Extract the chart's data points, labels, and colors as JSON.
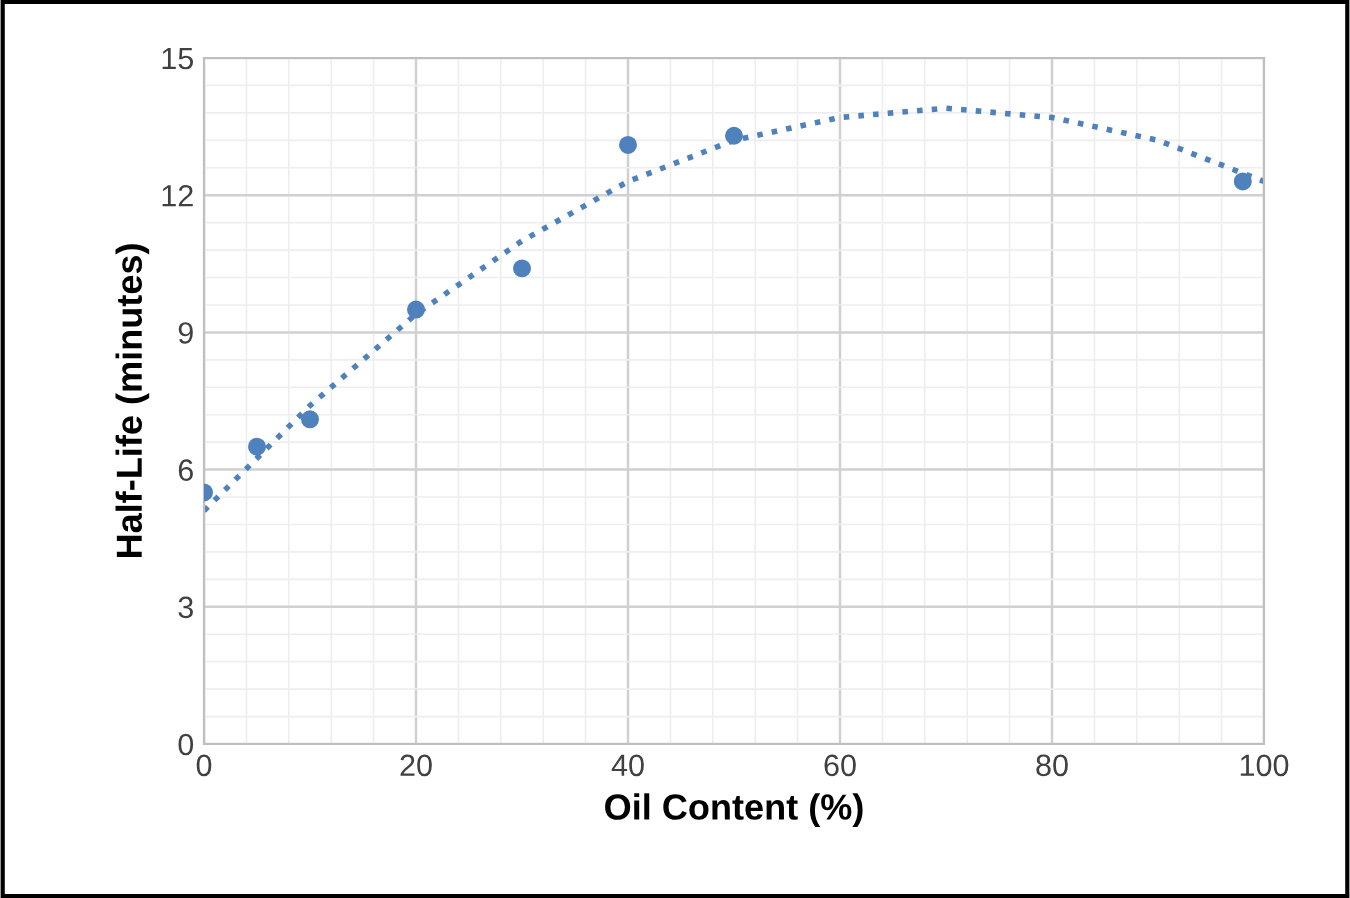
{
  "chart_data": {
    "type": "scatter",
    "xlabel": "Oil Content (%)",
    "ylabel": "Half-Life (minutes)",
    "xlim": [
      0,
      100
    ],
    "xticks": [
      0,
      20,
      40,
      60,
      80,
      100
    ],
    "ylim": [
      0,
      15
    ],
    "yticks": [
      0,
      3,
      6,
      9,
      12,
      15
    ],
    "grid": true,
    "series": [
      {
        "color": "#4f81bd",
        "marker": "circle",
        "x": [
          0,
          5,
          10,
          20,
          30,
          40,
          50,
          98
        ],
        "values": [
          5.5,
          6.5,
          7.1,
          9.5,
          10.4,
          13.1,
          13.3,
          12.3
        ]
      },
      {
        "type": "line",
        "color": "#4f81bd",
        "marker": "none",
        "line_style": "dotted",
        "x": [
          0,
          10,
          20,
          30,
          40,
          50,
          60,
          70,
          80,
          90,
          100
        ],
        "values": [
          5.1,
          7.4,
          9.4,
          11.0,
          12.3,
          13.2,
          13.7,
          13.9,
          13.7,
          13.2,
          12.3
        ]
      }
    ]
  }
}
